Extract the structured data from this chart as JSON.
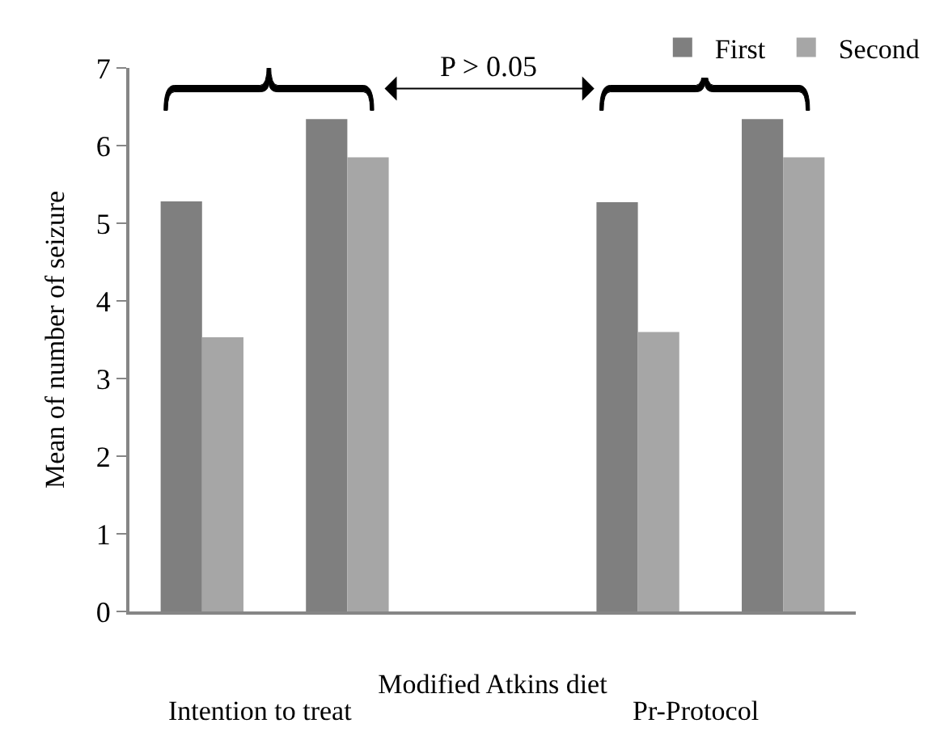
{
  "chart_data": {
    "type": "bar",
    "categories": [
      null,
      null,
      null,
      null,
      null
    ],
    "series": [
      {
        "name": "First",
        "color": "#7f7f7f",
        "values": [
          5.28,
          6.34,
          null,
          5.27,
          6.34
        ]
      },
      {
        "name": "Second",
        "color": "#a6a6a6",
        "values": [
          3.53,
          5.85,
          null,
          3.6,
          5.85
        ]
      }
    ],
    "ylabel": "Mean of number of seizure",
    "xlabel": "Modified Atkins diet",
    "annotations": [
      "P > 0.05",
      "Intention to treat",
      "Pr-Protocol"
    ],
    "ylim": [
      0,
      7
    ],
    "yticks": [
      0,
      1,
      2,
      3,
      4,
      5,
      6,
      7
    ],
    "legend": "top right"
  }
}
